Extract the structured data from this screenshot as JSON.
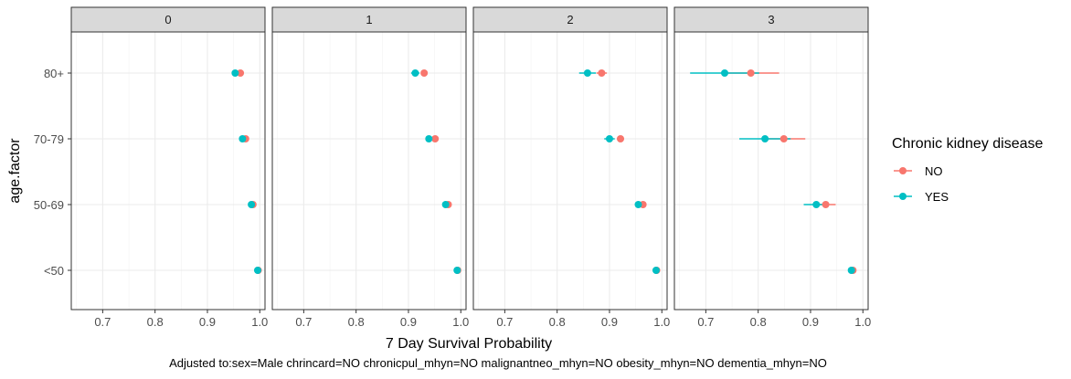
{
  "chart_data": {
    "type": "scatter",
    "xlabel": "7 Day Survival Probability",
    "ylabel": "age.factor",
    "caption": "Adjusted to:sex=Male chrincard=NO chronicpul_mhyn=NO malignantneo_mhyn=NO obesity_mhyn=NO dementia_mhyn=NO",
    "xlim": [
      0.64,
      1.01
    ],
    "x_ticks": [
      "0.7",
      "0.8",
      "0.9",
      "1.0"
    ],
    "x_tick_values": [
      0.7,
      0.8,
      0.9,
      1.0
    ],
    "categories": [
      "80+",
      "70-79",
      "50-69",
      "<50"
    ],
    "grid": true,
    "legend": {
      "title": "Chronic kidney disease",
      "position": "right",
      "entries": [
        "NO",
        "YES"
      ]
    },
    "colors": {
      "NO": "#F8766D",
      "YES": "#00BFC4",
      "strip": "#D9D9D9",
      "grid": "#EBEBEB"
    },
    "panels": [
      {
        "label": "0",
        "series": [
          {
            "name": "NO",
            "points": [
              {
                "category": "80+",
                "x": 0.963,
                "lo": 0.96,
                "hi": 0.966
              },
              {
                "category": "70-79",
                "x": 0.973,
                "lo": 0.97,
                "hi": 0.976
              },
              {
                "category": "50-69",
                "x": 0.987,
                "lo": 0.985,
                "hi": 0.989
              },
              {
                "category": "<50",
                "x": 0.997,
                "lo": 0.996,
                "hi": 0.998
              }
            ]
          },
          {
            "name": "YES",
            "points": [
              {
                "category": "80+",
                "x": 0.953,
                "lo": 0.948,
                "hi": 0.958
              },
              {
                "category": "70-79",
                "x": 0.967,
                "lo": 0.963,
                "hi": 0.971
              },
              {
                "category": "50-69",
                "x": 0.984,
                "lo": 0.982,
                "hi": 0.986
              },
              {
                "category": "<50",
                "x": 0.996,
                "lo": 0.995,
                "hi": 0.997
              }
            ]
          }
        ]
      },
      {
        "label": "1",
        "series": [
          {
            "name": "NO",
            "points": [
              {
                "category": "80+",
                "x": 0.93,
                "lo": 0.925,
                "hi": 0.935
              },
              {
                "category": "70-79",
                "x": 0.951,
                "lo": 0.947,
                "hi": 0.955
              },
              {
                "category": "50-69",
                "x": 0.976,
                "lo": 0.973,
                "hi": 0.979
              },
              {
                "category": "<50",
                "x": 0.994,
                "lo": 0.993,
                "hi": 0.995
              }
            ]
          },
          {
            "name": "YES",
            "points": [
              {
                "category": "80+",
                "x": 0.913,
                "lo": 0.905,
                "hi": 0.921
              },
              {
                "category": "70-79",
                "x": 0.939,
                "lo": 0.934,
                "hi": 0.944
              },
              {
                "category": "50-69",
                "x": 0.971,
                "lo": 0.968,
                "hi": 0.974
              },
              {
                "category": "<50",
                "x": 0.993,
                "lo": 0.992,
                "hi": 0.994
              }
            ]
          }
        ]
      },
      {
        "label": "2",
        "series": [
          {
            "name": "NO",
            "points": [
              {
                "category": "80+",
                "x": 0.885,
                "lo": 0.875,
                "hi": 0.895
              },
              {
                "category": "70-79",
                "x": 0.921,
                "lo": 0.914,
                "hi": 0.928
              },
              {
                "category": "50-69",
                "x": 0.964,
                "lo": 0.96,
                "hi": 0.968
              },
              {
                "category": "<50",
                "x": 0.99,
                "lo": 0.989,
                "hi": 0.991
              }
            ]
          },
          {
            "name": "YES",
            "points": [
              {
                "category": "80+",
                "x": 0.858,
                "lo": 0.842,
                "hi": 0.874
              },
              {
                "category": "70-79",
                "x": 0.9,
                "lo": 0.89,
                "hi": 0.91
              },
              {
                "category": "50-69",
                "x": 0.955,
                "lo": 0.95,
                "hi": 0.96
              },
              {
                "category": "<50",
                "x": 0.989,
                "lo": 0.987,
                "hi": 0.991
              }
            ]
          }
        ]
      },
      {
        "label": "3",
        "series": [
          {
            "name": "NO",
            "points": [
              {
                "category": "80+",
                "x": 0.786,
                "lo": 0.732,
                "hi": 0.84
              },
              {
                "category": "70-79",
                "x": 0.849,
                "lo": 0.808,
                "hi": 0.89
              },
              {
                "category": "50-69",
                "x": 0.929,
                "lo": 0.91,
                "hi": 0.948
              },
              {
                "category": "<50",
                "x": 0.981,
                "lo": 0.977,
                "hi": 0.985
              }
            ]
          },
          {
            "name": "YES",
            "points": [
              {
                "category": "80+",
                "x": 0.736,
                "lo": 0.67,
                "hi": 0.802
              },
              {
                "category": "70-79",
                "x": 0.813,
                "lo": 0.764,
                "hi": 0.862
              },
              {
                "category": "50-69",
                "x": 0.911,
                "lo": 0.887,
                "hi": 0.935
              },
              {
                "category": "<50",
                "x": 0.978,
                "lo": 0.973,
                "hi": 0.983
              }
            ]
          }
        ]
      }
    ]
  }
}
